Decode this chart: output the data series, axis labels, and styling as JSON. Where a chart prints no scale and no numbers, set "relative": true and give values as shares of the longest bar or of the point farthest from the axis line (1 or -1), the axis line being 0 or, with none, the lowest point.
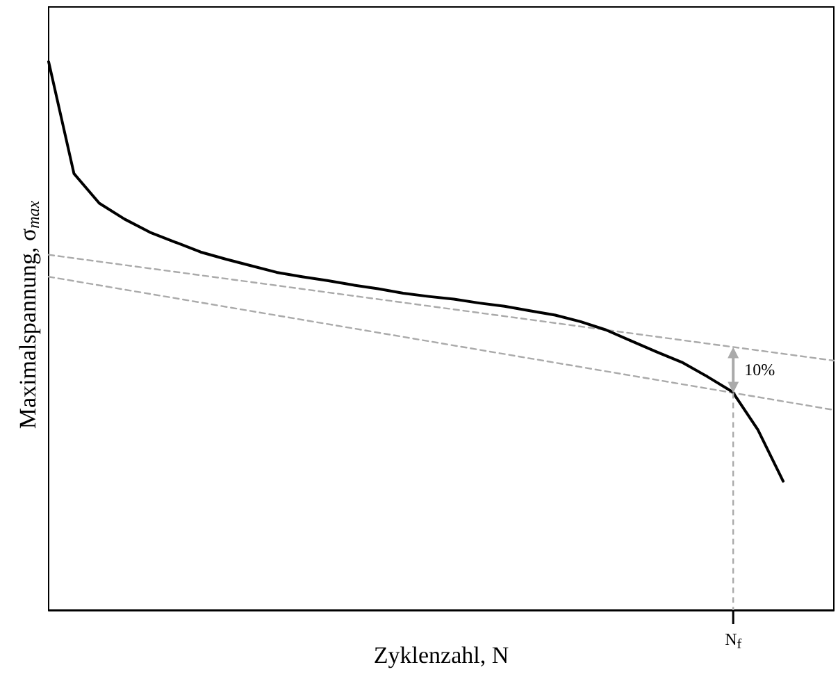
{
  "chart_data": {
    "type": "line",
    "relative": true,
    "xlabel": "Zyklenzahl, N",
    "ylabel": "Maximalspannung, σ$_{max}$",
    "grid": false,
    "marker": "none",
    "annotations": [
      "10%",
      "N$_{f}$"
    ],
    "categories": [
      null,
      null,
      null,
      null,
      null,
      null,
      null,
      null,
      null,
      null,
      null,
      null,
      null,
      null,
      null,
      null,
      null,
      null,
      null,
      null,
      null,
      null,
      null,
      null,
      null,
      null,
      null,
      null,
      null,
      null,
      null,
      null
    ],
    "series": [
      {
        "color": "#000000",
        "line_style": "solid",
        "values": [
          1.0,
          0.796,
          0.742,
          0.713,
          0.689,
          0.671,
          0.653,
          0.64,
          0.628,
          0.616,
          0.608,
          0.601,
          0.593,
          0.586,
          0.578,
          0.572,
          0.567,
          0.56,
          0.554,
          0.546,
          0.538,
          0.526,
          0.511,
          0.491,
          0.471,
          0.452,
          0.426,
          0.398,
          0.329,
          0.235,
          null,
          null
        ]
      },
      {
        "color": "#aaaaaa",
        "line_style": "dashed",
        "values": [
          0.648,
          null,
          null,
          null,
          null,
          null,
          null,
          null,
          null,
          null,
          null,
          null,
          null,
          null,
          null,
          null,
          null,
          null,
          null,
          null,
          null,
          null,
          null,
          null,
          null,
          null,
          null,
          null,
          null,
          null,
          null,
          0.455
        ]
      },
      {
        "color": "#aaaaaa",
        "line_style": "dashed",
        "values": [
          0.608,
          null,
          null,
          null,
          null,
          null,
          null,
          null,
          null,
          null,
          null,
          null,
          null,
          null,
          null,
          null,
          null,
          null,
          null,
          null,
          null,
          null,
          null,
          null,
          null,
          null,
          null,
          null,
          null,
          null,
          null,
          0.365
        ]
      }
    ]
  }
}
